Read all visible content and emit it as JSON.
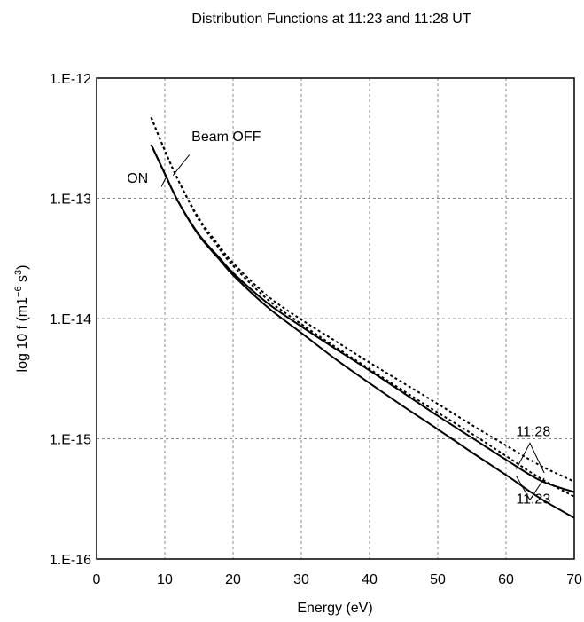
{
  "chart_data": {
    "type": "line",
    "title": "Distribution Functions at 11:23 and 11:28 UT",
    "xlabel": "Energy (eV)",
    "ylabel_main": "log 10 f (m1",
    "ylabel_sup1": "−6",
    "ylabel_mid": " s",
    "ylabel_sup2": "3",
    "ylabel_end": ")",
    "xlim": [
      0,
      70
    ],
    "ylim": [
      1e-16,
      1e-12
    ],
    "y_scale": "log",
    "grid": true,
    "x_ticks": [
      "0",
      "10",
      "20",
      "30",
      "40",
      "50",
      "60",
      "70"
    ],
    "x_tick_values": [
      0,
      10,
      20,
      30,
      40,
      50,
      60,
      70
    ],
    "y_ticks": [
      "1.E-12",
      "1.E-13",
      "1.E-14",
      "1.E-15",
      "1.E-16"
    ],
    "y_tick_values": [
      1e-12,
      1e-13,
      1e-14,
      1e-15,
      1e-16
    ],
    "series": [
      {
        "style": "solid",
        "x": [
          8,
          10,
          12,
          15,
          18,
          20,
          25,
          30,
          35,
          40,
          45,
          50,
          55,
          60,
          65,
          70
        ],
        "y": [
          2.8e-13,
          1.6e-13,
          9.3e-14,
          5e-14,
          3.2e-14,
          2.4e-14,
          1.35e-14,
          8.6e-15,
          5.6e-15,
          3.7e-15,
          2.4e-15,
          1.55e-15,
          1.02e-15,
          6.7e-16,
          4.5e-16,
          3.6e-16
        ]
      },
      {
        "style": "solid",
        "x": [
          8,
          10,
          12,
          15,
          18,
          20,
          25,
          30,
          35,
          40,
          45,
          50,
          55,
          60,
          65,
          70
        ],
        "y": [
          2.8e-13,
          1.6e-13,
          9.3e-14,
          4.9e-14,
          3.1e-14,
          2.3e-14,
          1.25e-14,
          7.6e-15,
          4.6e-15,
          2.9e-15,
          1.85e-15,
          1.2e-15,
          7.7e-16,
          5e-16,
          3.2e-16,
          2.2e-16
        ]
      },
      {
        "style": "dashed",
        "x": [
          8,
          10,
          12,
          15,
          18,
          20,
          25,
          30,
          35,
          40,
          45,
          50,
          55,
          60,
          65,
          70
        ],
        "y": [
          4.7e-13,
          2.5e-13,
          1.4e-13,
          6.8e-14,
          4e-14,
          2.9e-14,
          1.55e-14,
          9.8e-15,
          6.5e-15,
          4.3e-15,
          2.9e-15,
          1.95e-15,
          1.3e-15,
          8.8e-16,
          6e-16,
          4.4e-16
        ]
      },
      {
        "style": "dashed",
        "x": [
          8,
          10,
          12,
          15,
          18,
          20,
          25,
          30,
          35,
          40,
          45,
          50,
          55,
          60,
          65,
          70
        ],
        "y": [
          4.7e-13,
          2.5e-13,
          1.4e-13,
          6.6e-14,
          3.8e-14,
          2.75e-14,
          1.45e-14,
          9e-15,
          5.8e-15,
          3.8e-15,
          2.5e-15,
          1.65e-15,
          1.1e-15,
          7.2e-16,
          4.7e-16,
          3.3e-16
        ]
      }
    ],
    "annotations": [
      {
        "text": "Beam OFF",
        "x": 19,
        "y": 3e-13
      },
      {
        "text": "ON",
        "x": 6,
        "y": 1.35e-13
      },
      {
        "text": "11:28",
        "x": 64,
        "y": 1.05e-15
      },
      {
        "text": "11:23",
        "x": 64,
        "y": 2.9e-16
      }
    ]
  }
}
